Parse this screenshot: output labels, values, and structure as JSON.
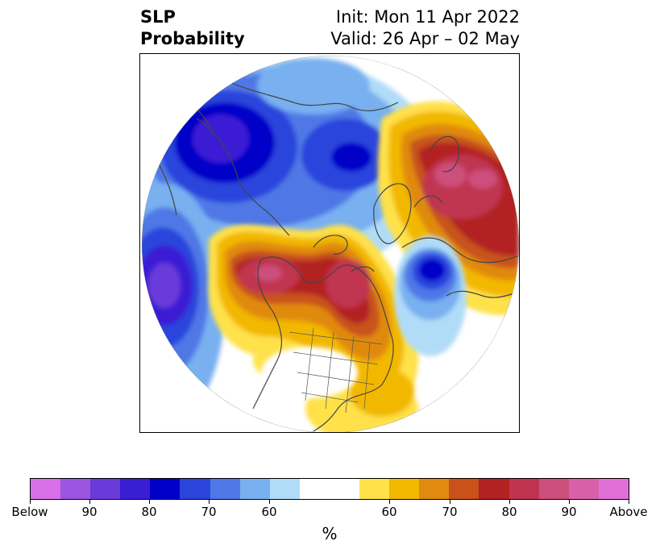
{
  "title": {
    "left_line1": "SLP",
    "left_line2": "Probability",
    "right_line1": "Init: Mon 11 Apr 2022",
    "right_line2": "Valid: 26 Apr – 02 May"
  },
  "colorbar": {
    "below_colors": [
      "#d66fe8",
      "#9b55e0",
      "#6a3bd9",
      "#3a1ed4",
      "#0000c8",
      "#2a44dc",
      "#4f78e6",
      "#78b0f0",
      "#b0dcf8"
    ],
    "neutral_color": "#ffffff",
    "above_colors": [
      "#ffe14a",
      "#f2b800",
      "#e08a10",
      "#c8521a",
      "#b22222",
      "#c03450",
      "#cc4f7c",
      "#d860a8",
      "#e070d8"
    ],
    "tick_labels": [
      "Below",
      "90",
      "80",
      "70",
      "60",
      "60",
      "70",
      "80",
      "90",
      "Above"
    ],
    "unit_label": "%"
  },
  "map": {
    "projection": "north-polar-stereographic",
    "anomalies": [
      {
        "region": "Arctic / Siberia",
        "sign": "below"
      },
      {
        "region": "North Pacific (west)",
        "sign": "below"
      },
      {
        "region": "Gulf of Alaska / NE Pacific",
        "sign": "above"
      },
      {
        "region": "Canada / Hudson Bay / Greenland",
        "sign": "above"
      },
      {
        "region": "Eastern North Atlantic",
        "sign": "below"
      },
      {
        "region": "Europe / Scandinavia / Russia",
        "sign": "above"
      },
      {
        "region": "Southeast US / Gulf",
        "sign": "above"
      }
    ]
  }
}
